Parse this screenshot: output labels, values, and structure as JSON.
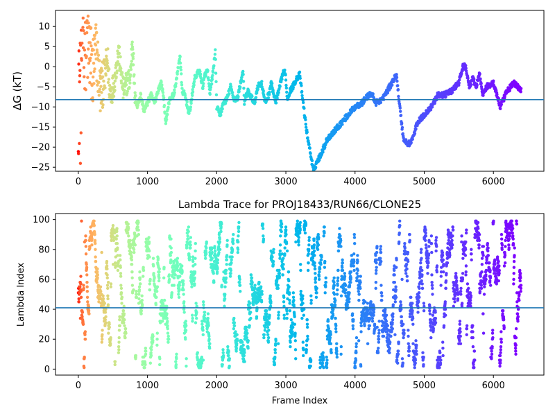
{
  "chart_data": [
    {
      "type": "scatter",
      "title": "",
      "xlabel": "",
      "ylabel": "ΔG (kT)",
      "xlim": [
        -330,
        6730
      ],
      "ylim": [
        -26,
        14
      ],
      "xticks": [
        0,
        1000,
        2000,
        3000,
        4000,
        5000,
        6000
      ],
      "yticks": [
        -25,
        -20,
        -15,
        -10,
        -5,
        0,
        5,
        10
      ],
      "hline": -8.2,
      "hline_color": "#1f77b4",
      "color_scale": "rainbow (red at early frames → violet at late frames)",
      "trace_points": [
        [
          0,
          0
        ],
        [
          30,
          -6
        ],
        [
          60,
          13
        ],
        [
          100,
          9
        ],
        [
          150,
          5
        ],
        [
          200,
          -2
        ],
        [
          260,
          4
        ],
        [
          320,
          -6
        ],
        [
          380,
          -3
        ],
        [
          420,
          2
        ],
        [
          460,
          -7
        ],
        [
          520,
          -4
        ],
        [
          580,
          4
        ],
        [
          650,
          -6
        ],
        [
          700,
          -4
        ],
        [
          750,
          -3
        ],
        [
          780,
          6
        ],
        [
          790,
          5
        ],
        [
          810,
          -6
        ],
        [
          850,
          -10
        ],
        [
          900,
          -7
        ],
        [
          950,
          -11
        ],
        [
          1000,
          -9
        ],
        [
          1050,
          -7
        ],
        [
          1100,
          -9
        ],
        [
          1150,
          -6
        ],
        [
          1200,
          -4
        ],
        [
          1230,
          -7
        ],
        [
          1260,
          -14
        ],
        [
          1290,
          -11
        ],
        [
          1320,
          -8
        ],
        [
          1380,
          -7
        ],
        [
          1430,
          -2
        ],
        [
          1470,
          3
        ],
        [
          1500,
          -6
        ],
        [
          1540,
          -7
        ],
        [
          1580,
          -10
        ],
        [
          1600,
          -12
        ],
        [
          1630,
          -9
        ],
        [
          1680,
          -3
        ],
        [
          1710,
          -2
        ],
        [
          1750,
          -1
        ],
        [
          1800,
          -5
        ],
        [
          1830,
          -2
        ],
        [
          1870,
          -1
        ],
        [
          1900,
          -7
        ],
        [
          1950,
          -1
        ],
        [
          1980,
          4
        ],
        [
          2000,
          -10
        ],
        [
          2050,
          -12
        ],
        [
          2100,
          -9
        ],
        [
          2150,
          -8
        ],
        [
          2200,
          -5
        ],
        [
          2250,
          -8
        ],
        [
          2300,
          -8
        ],
        [
          2380,
          -1
        ],
        [
          2400,
          -9
        ],
        [
          2450,
          -6
        ],
        [
          2480,
          -7
        ],
        [
          2550,
          -9
        ],
        [
          2590,
          -5
        ],
        [
          2650,
          -4
        ],
        [
          2700,
          -9
        ],
        [
          2750,
          -7
        ],
        [
          2790,
          -4
        ],
        [
          2850,
          -9
        ],
        [
          2900,
          -6
        ],
        [
          2950,
          -2
        ],
        [
          2990,
          -1
        ],
        [
          3020,
          -8
        ],
        [
          3060,
          -6
        ],
        [
          3100,
          -5
        ],
        [
          3150,
          -3
        ],
        [
          3200,
          -2
        ],
        [
          3250,
          -9
        ],
        [
          3300,
          -16
        ],
        [
          3350,
          -21
        ],
        [
          3400,
          -26
        ],
        [
          3440,
          -24
        ],
        [
          3500,
          -22
        ],
        [
          3600,
          -18
        ],
        [
          3700,
          -16
        ],
        [
          3800,
          -14
        ],
        [
          3900,
          -12
        ],
        [
          4000,
          -10
        ],
        [
          4100,
          -9
        ],
        [
          4200,
          -7
        ],
        [
          4250,
          -7
        ],
        [
          4300,
          -9
        ],
        [
          4400,
          -8
        ],
        [
          4500,
          -5
        ],
        [
          4600,
          -2
        ],
        [
          4640,
          -9
        ],
        [
          4700,
          -18
        ],
        [
          4750,
          -19
        ],
        [
          4800,
          -19
        ],
        [
          4850,
          -17
        ],
        [
          4900,
          -14
        ],
        [
          5000,
          -12
        ],
        [
          5100,
          -10
        ],
        [
          5200,
          -7
        ],
        [
          5300,
          -7
        ],
        [
          5400,
          -6
        ],
        [
          5500,
          -4
        ],
        [
          5560,
          0
        ],
        [
          5600,
          0
        ],
        [
          5650,
          -5
        ],
        [
          5700,
          -3
        ],
        [
          5750,
          -5
        ],
        [
          5800,
          -2
        ],
        [
          5850,
          -7
        ],
        [
          5900,
          -5
        ],
        [
          6000,
          -4
        ],
        [
          6050,
          -7
        ],
        [
          6100,
          -10
        ],
        [
          6200,
          -6
        ],
        [
          6300,
          -4
        ],
        [
          6400,
          -6
        ]
      ]
    },
    {
      "type": "scatter",
      "title": "Lambda Trace for PROJ18433/RUN66/CLONE25",
      "xlabel": "Frame Index",
      "ylabel": "Lambda Index",
      "xlim": [
        -330,
        6730
      ],
      "ylim": [
        -4,
        104
      ],
      "xticks": [
        0,
        1000,
        2000,
        3000,
        4000,
        5000,
        6000
      ],
      "yticks": [
        0,
        20,
        40,
        60,
        80,
        100
      ],
      "hline": 41,
      "hline_color": "#1f77b4",
      "color_scale": "rainbow (red at early frames → violet at late frames)",
      "frame_range": [
        0,
        6400
      ],
      "lambda_range": [
        0,
        99
      ]
    }
  ]
}
